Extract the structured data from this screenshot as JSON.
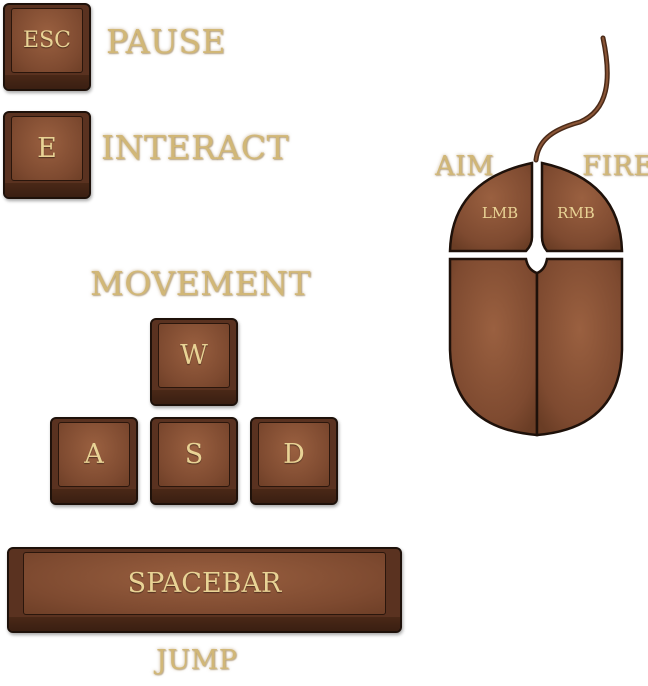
{
  "keys": {
    "esc": "ESC",
    "e": "E",
    "w": "W",
    "a": "A",
    "s": "S",
    "d": "D",
    "spacebar": "SPACEBAR"
  },
  "labels": {
    "pause": "PAUSE",
    "interact": "INTERACT",
    "movement": "MOVEMENT",
    "jump": "JUMP",
    "aim": "AIM",
    "fire": "FIRE"
  },
  "mouse": {
    "left_button": "LMB",
    "right_button": "RMB"
  },
  "colors": {
    "key_face": "#7e4a30",
    "key_edge": "#1e110a",
    "key_text": "#e9d395",
    "label_text": "#d1b777"
  }
}
